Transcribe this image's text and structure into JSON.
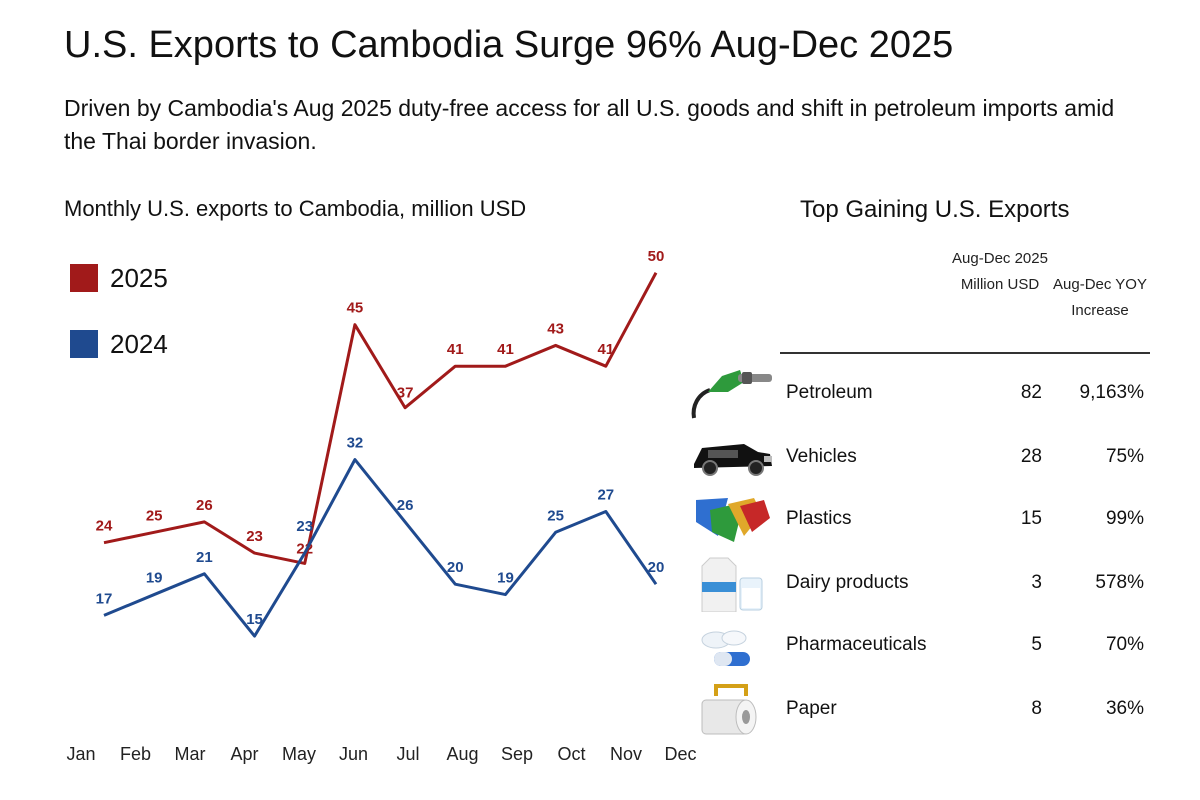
{
  "header": {
    "title": "U.S. Exports to Cambodia Surge 96% Aug-Dec 2025",
    "subtitle": "Driven by Cambodia's Aug 2025 duty-free access for all U.S. goods and shift in petroleum imports amid the Thai border invasion."
  },
  "chart_data": {
    "type": "line",
    "title": "Monthly U.S. exports to Cambodia, million USD",
    "categories": [
      "Jan",
      "Feb",
      "Mar",
      "Apr",
      "May",
      "Jun",
      "Jul",
      "Aug",
      "Sep",
      "Oct",
      "Nov",
      "Dec"
    ],
    "series": [
      {
        "name": "2025",
        "color": "#a11a1a",
        "values": [
          24,
          25,
          26,
          23,
          22,
          45,
          37,
          41,
          41,
          43,
          41,
          50
        ]
      },
      {
        "name": "2024",
        "color": "#1f4a8f",
        "values": [
          17,
          19,
          21,
          15,
          23,
          32,
          26,
          20,
          19,
          25,
          27,
          20
        ]
      }
    ],
    "xlabel": "",
    "ylabel": "",
    "ylim": [
      10,
      52
    ]
  },
  "table": {
    "title": "Top Gaining U.S. Exports",
    "col1_header": "Aug-Dec 2025 Million USD",
    "col2_header": "Aug-Dec YOY Increase",
    "rows": [
      {
        "icon": "fuel-pump-icon",
        "name": "Petroleum",
        "usd": "82",
        "yoy": "9,163%"
      },
      {
        "icon": "vehicle-icon",
        "name": "Vehicles",
        "usd": "28",
        "yoy": "75%"
      },
      {
        "icon": "plastics-icon",
        "name": "Plastics",
        "usd": "15",
        "yoy": "99%"
      },
      {
        "icon": "milk-carton-icon",
        "name": "Dairy products",
        "usd": "3",
        "yoy": "578%"
      },
      {
        "icon": "pills-icon",
        "name": "Pharmaceuticals",
        "usd": "5",
        "yoy": "70%"
      },
      {
        "icon": "paper-roll-icon",
        "name": "Paper",
        "usd": "8",
        "yoy": "36%"
      }
    ]
  }
}
